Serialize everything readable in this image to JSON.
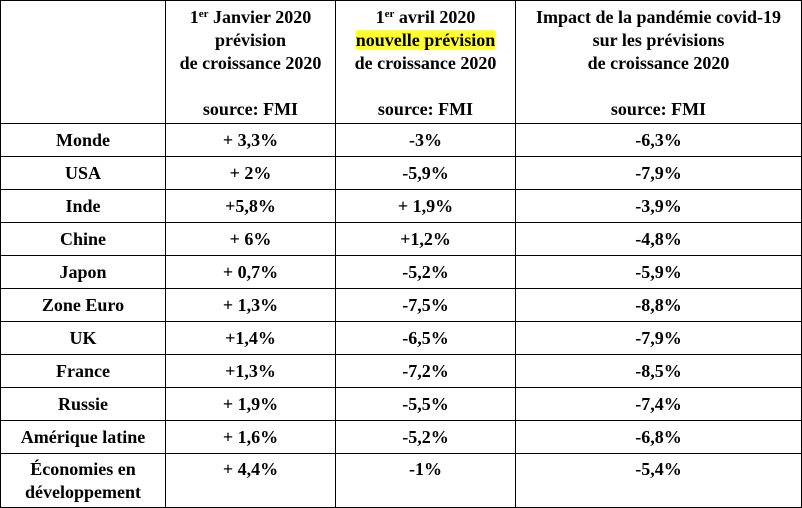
{
  "headers": [
    {
      "sup_prefix": "1",
      "sup": "er",
      "line1_rest": " Janvier 2020",
      "line2": "prévision",
      "line3": "de croissance 2020",
      "source": "source: FMI"
    },
    {
      "sup_prefix": "1",
      "sup": "er",
      "line1_rest": " avril 2020",
      "line2": "nouvelle prévision",
      "line3": "de croissance 2020",
      "source": "source: FMI",
      "highlight_color": "#ffff33"
    },
    {
      "line1": "Impact de la pandémie covid-19",
      "line2": "sur les prévisions",
      "line3": "de croissance 2020",
      "source": "source: FMI"
    }
  ],
  "rows": [
    {
      "region": "Monde",
      "jan": "+ 3,3%",
      "apr": "-3%",
      "impact": "-6,3%"
    },
    {
      "region": "USA",
      "jan": "+ 2%",
      "apr": "-5,9%",
      "impact": "-7,9%"
    },
    {
      "region": "Inde",
      "jan": "+5,8%",
      "apr": "+ 1,9%",
      "impact": "-3,9%"
    },
    {
      "region": "Chine",
      "jan": "+ 6%",
      "apr": "+1,2%",
      "impact": "-4,8%"
    },
    {
      "region": "Japon",
      "jan": "+ 0,7%",
      "apr": "-5,2%",
      "impact": "-5,9%"
    },
    {
      "region": "Zone Euro",
      "jan": "+ 1,3%",
      "apr": "-7,5%",
      "impact": "-8,8%"
    },
    {
      "region": "UK",
      "jan": "+1,4%",
      "apr": "-6,5%",
      "impact": "-7,9%"
    },
    {
      "region": "France",
      "jan": "+1,3%",
      "apr": "-7,2%",
      "impact": "-8,5%"
    },
    {
      "region": "Russie",
      "jan": "+ 1,9%",
      "apr": "-5,5%",
      "impact": "-7,4%"
    },
    {
      "region": "Amérique latine",
      "jan": "+ 1,6%",
      "apr": "-5,2%",
      "impact": "-6,8%"
    },
    {
      "region_line1": "Économies en",
      "region_line2": "développement",
      "jan": "+ 4,4%",
      "apr": "-1%",
      "impact": "-5,4%"
    }
  ]
}
